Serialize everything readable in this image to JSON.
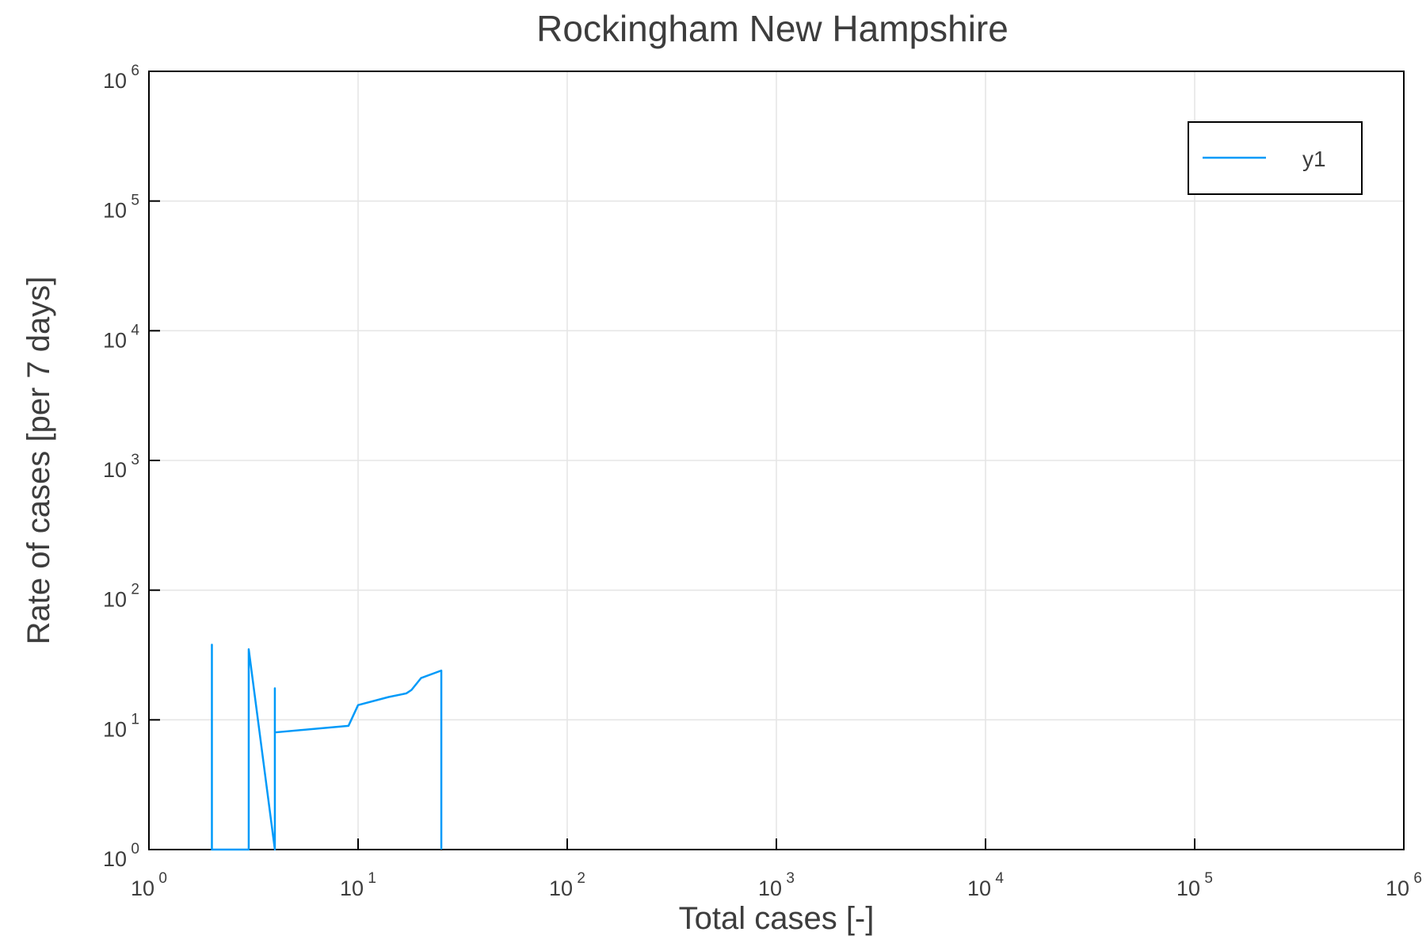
{
  "chart_data": {
    "type": "line",
    "title": "Rockingham New Hampshire",
    "xlabel": "Total cases [-]",
    "ylabel": "Rate of cases [per 7 days]",
    "xscale": "log",
    "yscale": "log",
    "xlim": [
      1,
      1000000
    ],
    "ylim": [
      1,
      1000000
    ],
    "grid": true,
    "legend_position": "top-right",
    "x_ticks": [
      {
        "base": "10",
        "exp": "0"
      },
      {
        "base": "10",
        "exp": "1"
      },
      {
        "base": "10",
        "exp": "2"
      },
      {
        "base": "10",
        "exp": "3"
      },
      {
        "base": "10",
        "exp": "4"
      },
      {
        "base": "10",
        "exp": "5"
      },
      {
        "base": "10",
        "exp": "6"
      }
    ],
    "y_ticks": [
      {
        "base": "10",
        "exp": "0"
      },
      {
        "base": "10",
        "exp": "1"
      },
      {
        "base": "10",
        "exp": "2"
      },
      {
        "base": "10",
        "exp": "3"
      },
      {
        "base": "10",
        "exp": "4"
      },
      {
        "base": "10",
        "exp": "5"
      },
      {
        "base": "10",
        "exp": "6"
      }
    ],
    "series": [
      {
        "name": "y1",
        "color": "#009af9",
        "x": [
          2,
          2,
          2,
          2,
          3,
          3,
          4,
          4,
          4,
          9,
          10,
          14,
          17,
          18,
          20,
          25,
          25
        ],
        "y": [
          1,
          38,
          25,
          1,
          1,
          35,
          1,
          17.5,
          8,
          9,
          13,
          15,
          16,
          17,
          21,
          24,
          1
        ]
      }
    ]
  }
}
